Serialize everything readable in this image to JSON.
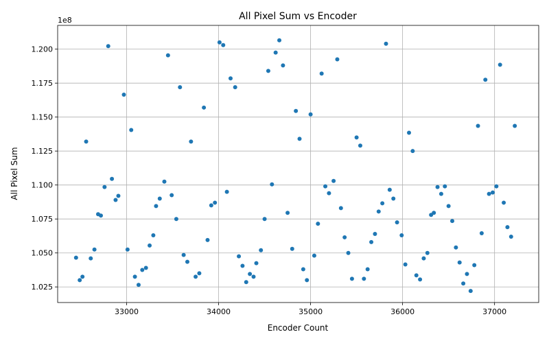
{
  "chart_data": {
    "type": "scatter",
    "title": "All Pixel Sum vs Encoder",
    "xlabel": "Encoder Count",
    "ylabel": "All Pixel Sum",
    "y_offset_label": "1e8",
    "y_scale": 100000000,
    "xlim": [
      32250,
      37480
    ],
    "ylim": [
      1.0135,
      1.2175
    ],
    "xticks": [
      33000,
      34000,
      35000,
      36000,
      37000
    ],
    "xtick_labels": [
      "33000",
      "34000",
      "35000",
      "36000",
      "37000"
    ],
    "yticks": [
      1.025,
      1.05,
      1.075,
      1.1,
      1.125,
      1.15,
      1.175,
      1.2
    ],
    "ytick_labels": [
      "1.025",
      "1.050",
      "1.075",
      "1.100",
      "1.125",
      "1.150",
      "1.175",
      "1.200"
    ],
    "grid": true,
    "marker_color": "#1f77b4",
    "x": [
      32450,
      32490,
      32520,
      32560,
      32610,
      32650,
      32690,
      32720,
      32760,
      32800,
      32840,
      32880,
      32910,
      32970,
      33010,
      33050,
      33090,
      33130,
      33170,
      33210,
      33250,
      33290,
      33320,
      33360,
      33410,
      33450,
      33490,
      33540,
      33580,
      33620,
      33660,
      33700,
      33750,
      33790,
      33840,
      33880,
      33920,
      33960,
      34010,
      34050,
      34090,
      34130,
      34180,
      34220,
      34260,
      34300,
      34340,
      34380,
      34410,
      34460,
      34500,
      34540,
      34580,
      34620,
      34660,
      34700,
      34750,
      34800,
      34840,
      34880,
      34920,
      34960,
      35000,
      35040,
      35080,
      35120,
      35160,
      35200,
      35250,
      35290,
      35330,
      35370,
      35410,
      35450,
      35500,
      35540,
      35580,
      35620,
      35660,
      35700,
      35740,
      35780,
      35820,
      35860,
      35900,
      35940,
      35990,
      36030,
      36070,
      36110,
      36150,
      36190,
      36230,
      36270,
      36310,
      36340,
      36380,
      36420,
      36460,
      36500,
      36540,
      36580,
      36620,
      36660,
      36700,
      36740,
      36780,
      36820,
      36860,
      36900,
      36940,
      36980,
      37020,
      37060,
      37100,
      37140,
      37180,
      37220
    ],
    "y": [
      1.0465,
      1.03,
      1.0325,
      1.132,
      1.046,
      1.0525,
      1.0785,
      1.0775,
      1.0985,
      1.2022,
      1.1045,
      1.089,
      1.092,
      1.1665,
      1.0525,
      1.1405,
      1.0325,
      1.0265,
      1.0375,
      1.039,
      1.0555,
      1.063,
      1.0845,
      1.09,
      1.1025,
      1.1955,
      1.0925,
      1.075,
      1.172,
      1.0485,
      1.0435,
      1.132,
      1.0325,
      1.035,
      1.157,
      1.0595,
      1.085,
      1.087,
      1.205,
      1.203,
      1.095,
      1.1785,
      1.172,
      1.0475,
      1.0405,
      1.0285,
      1.0345,
      1.0325,
      1.0425,
      1.052,
      1.075,
      1.184,
      1.1005,
      1.1975,
      1.2065,
      1.188,
      1.0795,
      1.053,
      1.1545,
      1.134,
      1.038,
      1.03,
      1.152,
      1.048,
      1.0715,
      1.182,
      1.099,
      1.094,
      1.103,
      1.1925,
      1.083,
      1.0615,
      1.05,
      1.031,
      1.135,
      1.129,
      1.031,
      1.038,
      1.058,
      1.064,
      1.0805,
      1.0865,
      1.204,
      1.0965,
      1.09,
      1.0725,
      1.063,
      1.0415,
      1.1385,
      1.125,
      1.0335,
      1.0305,
      1.046,
      1.05,
      1.078,
      1.0795,
      1.0985,
      1.0935,
      1.099,
      1.0845,
      1.0735,
      1.054,
      1.043,
      1.0275,
      1.0345,
      1.022,
      1.041,
      1.1435,
      1.0645,
      1.1775,
      1.0935,
      1.0945,
      1.099,
      1.1885,
      1.087,
      1.069,
      1.062,
      1.1435
    ]
  }
}
